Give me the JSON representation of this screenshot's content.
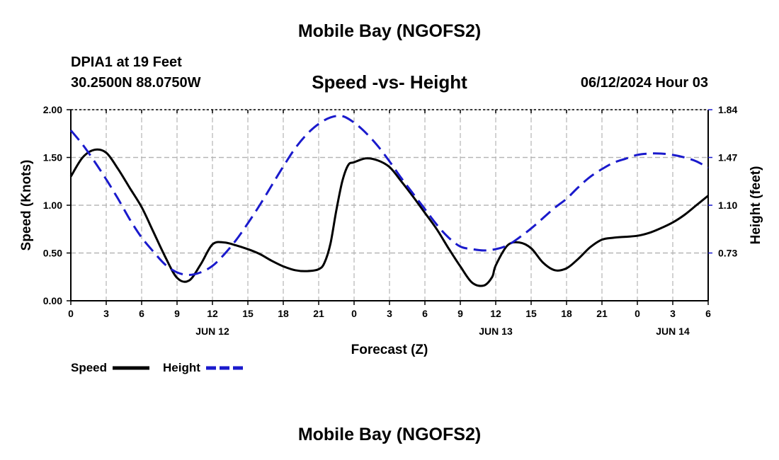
{
  "header": {
    "title": "Mobile Bay (NGOFS2)",
    "station": "DPIA1 at 19 Feet",
    "coords": "30.2500N  88.0750W",
    "chart_title": "Speed -vs- Height",
    "datetime": "06/12/2024 Hour 03"
  },
  "footer": {
    "title": "Mobile Bay (NGOFS2)"
  },
  "colors": {
    "speed": "#000000",
    "height": "#1a1acc",
    "grid": "#b4b4b4"
  },
  "chart_data": {
    "type": "line",
    "title": "Speed -vs- Height",
    "xlabel": "Forecast (Z)",
    "ylabel": "Speed (Knots)",
    "y2label": "Height (feet)",
    "xlim": [
      0,
      54
    ],
    "ylim": [
      0,
      2
    ],
    "y2lim": [
      0.36,
      1.84
    ],
    "x_ticks": [
      0,
      3,
      6,
      9,
      12,
      15,
      18,
      21,
      24,
      27,
      30,
      33,
      36,
      39,
      42,
      45,
      48,
      51,
      54
    ],
    "x_tick_labels": [
      "0",
      "3",
      "6",
      "9",
      "12",
      "15",
      "18",
      "21",
      "0",
      "3",
      "6",
      "9",
      "12",
      "15",
      "18",
      "21",
      "0",
      "3",
      "6"
    ],
    "date_labels": [
      {
        "x": 12,
        "label": "JUN 12"
      },
      {
        "x": 36,
        "label": "JUN 13"
      },
      {
        "x": 51,
        "label": "JUN 14"
      }
    ],
    "y_ticks": [
      0,
      0.5,
      1,
      1.5,
      2
    ],
    "y_tick_labels": [
      "0.00",
      "0.50",
      "1.00",
      "1.50",
      "2.00"
    ],
    "y2_ticks": [
      0.73,
      1.1,
      1.47,
      1.84
    ],
    "y2_tick_labels": [
      "0.73",
      "1.10",
      "1.47",
      "1.84"
    ],
    "grid": true,
    "series": [
      {
        "name": "Speed",
        "axis": "left",
        "style": "solid",
        "x": [
          0,
          1,
          2,
          3,
          4,
          5,
          6,
          7,
          8,
          9,
          10,
          11,
          12,
          13,
          14,
          15,
          16,
          17,
          18,
          19,
          20,
          21,
          21.5,
          22,
          22.5,
          23,
          23.5,
          24,
          25,
          26,
          27,
          28,
          29,
          30,
          31,
          32,
          33,
          34,
          35,
          35.7,
          36,
          37,
          38,
          39,
          40,
          41,
          42,
          43,
          44,
          45,
          46,
          47,
          48,
          49,
          50,
          51,
          52,
          53,
          54
        ],
        "y": [
          1.3,
          1.5,
          1.58,
          1.55,
          1.38,
          1.18,
          0.98,
          0.72,
          0.46,
          0.24,
          0.21,
          0.38,
          0.59,
          0.61,
          0.58,
          0.54,
          0.49,
          0.42,
          0.36,
          0.32,
          0.31,
          0.33,
          0.4,
          0.6,
          0.95,
          1.25,
          1.42,
          1.45,
          1.49,
          1.47,
          1.4,
          1.25,
          1.09,
          0.92,
          0.75,
          0.55,
          0.36,
          0.19,
          0.16,
          0.25,
          0.37,
          0.58,
          0.61,
          0.55,
          0.4,
          0.32,
          0.34,
          0.44,
          0.56,
          0.64,
          0.66,
          0.67,
          0.68,
          0.71,
          0.76,
          0.82,
          0.9,
          1.0,
          1.1
        ]
      },
      {
        "name": "Height",
        "axis": "right",
        "style": "dashed",
        "x": [
          0,
          1,
          2,
          3,
          4,
          5,
          6,
          7,
          8,
          9,
          10,
          11,
          12,
          13,
          14,
          15,
          16,
          17,
          18,
          19,
          20,
          21,
          22,
          23,
          24,
          25,
          26,
          27,
          28,
          29,
          30,
          31,
          32,
          33,
          34,
          35,
          36,
          37,
          38,
          39,
          40,
          41,
          42,
          43,
          44,
          45,
          46,
          47,
          48,
          49,
          50,
          51,
          52,
          53,
          54
        ],
        "y": [
          1.68,
          1.57,
          1.44,
          1.3,
          1.15,
          0.99,
          0.85,
          0.74,
          0.64,
          0.58,
          0.56,
          0.58,
          0.63,
          0.72,
          0.83,
          0.96,
          1.1,
          1.25,
          1.4,
          1.54,
          1.65,
          1.73,
          1.78,
          1.79,
          1.74,
          1.66,
          1.56,
          1.44,
          1.31,
          1.19,
          1.07,
          0.95,
          0.85,
          0.78,
          0.76,
          0.75,
          0.76,
          0.79,
          0.85,
          0.92,
          1.0,
          1.08,
          1.15,
          1.24,
          1.32,
          1.38,
          1.43,
          1.46,
          1.49,
          1.5,
          1.5,
          1.49,
          1.47,
          1.44,
          1.39
        ]
      }
    ],
    "legend": [
      {
        "name": "Speed",
        "style": "solid"
      },
      {
        "name": "Height",
        "style": "dashed"
      }
    ]
  }
}
